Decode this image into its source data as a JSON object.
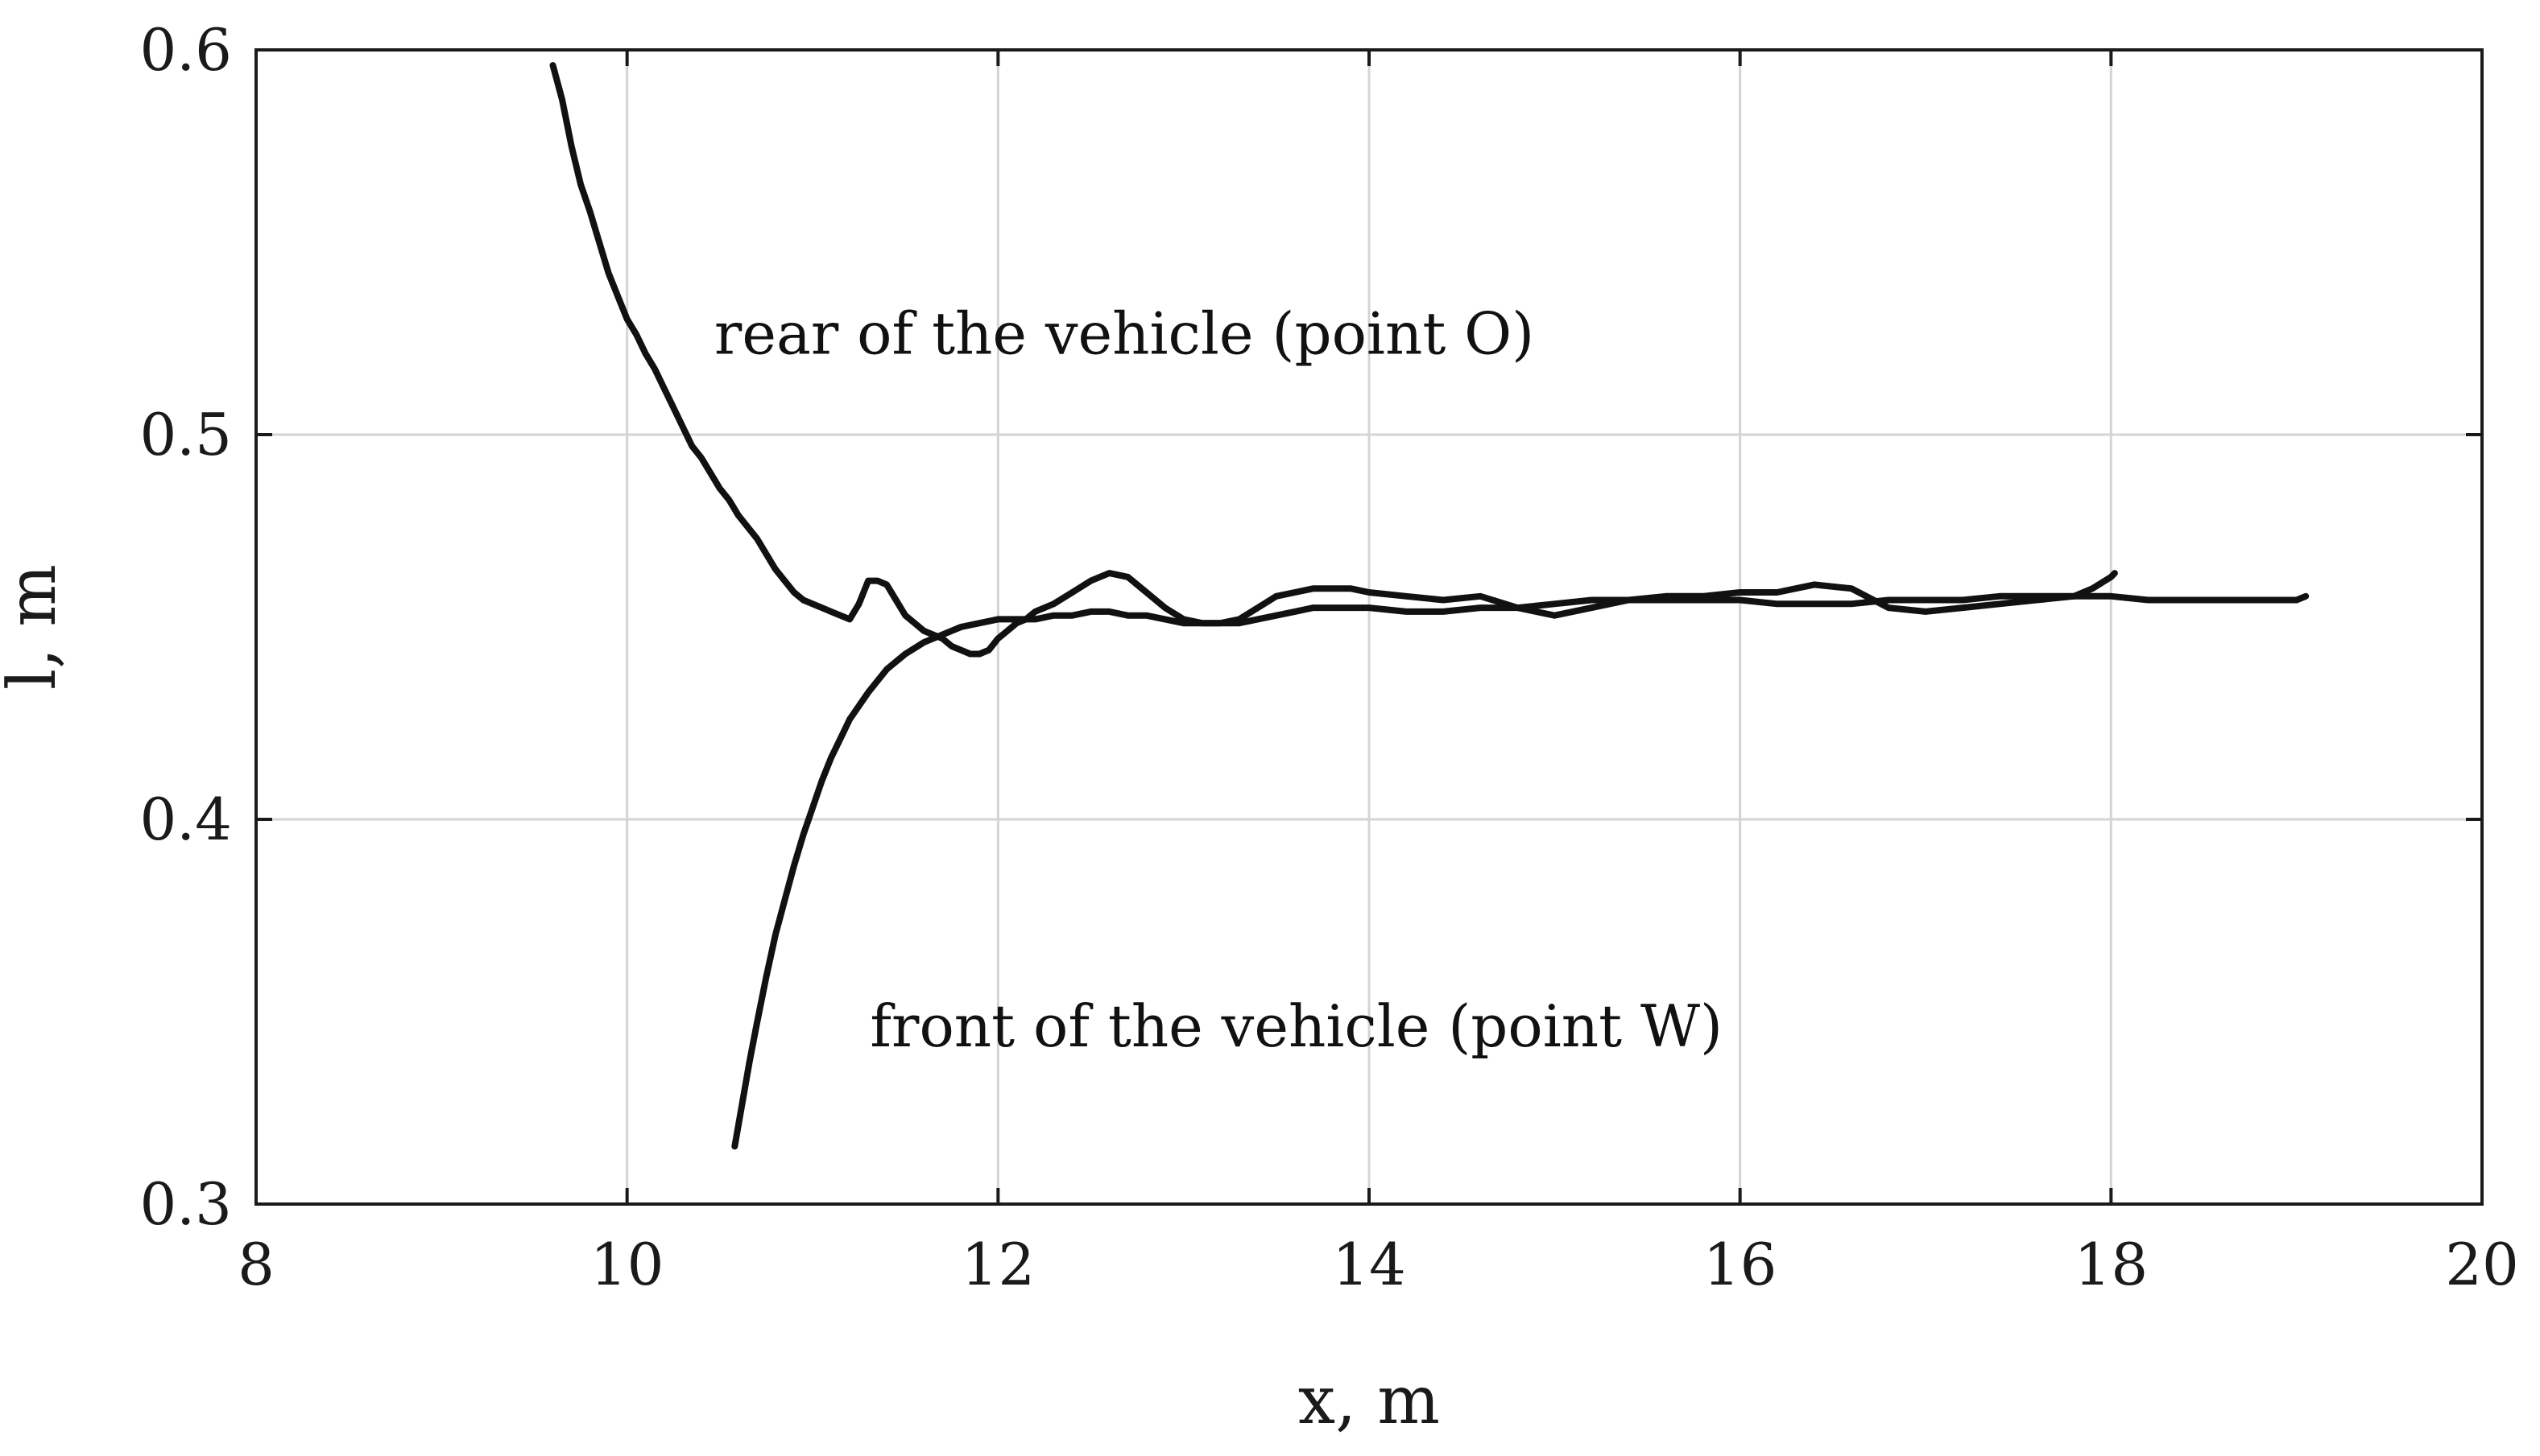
{
  "chart_data": {
    "type": "line",
    "title": "",
    "xlabel": "x, m",
    "ylabel": "l, m",
    "xlim": [
      8,
      20
    ],
    "ylim": [
      0.3,
      0.6
    ],
    "xticks": [
      8,
      10,
      12,
      14,
      16,
      18,
      20
    ],
    "yticks": [
      0.3,
      0.4,
      0.5,
      0.6
    ],
    "xtick_labels": [
      "8",
      "10",
      "12",
      "14",
      "16",
      "18",
      "20"
    ],
    "ytick_labels": [
      "0.3",
      "0.4",
      "0.5",
      "0.6"
    ],
    "grid": true,
    "line_color": "#111111",
    "annotations": [
      {
        "text": "rear of the vehicle (point O)",
        "x": 10.47,
        "y": 0.521
      },
      {
        "text": "front of the vehicle (point W)",
        "x": 11.31,
        "y": 0.341
      }
    ],
    "series": [
      {
        "points": [
          [
            9.6,
            0.596
          ],
          [
            9.65,
            0.587
          ],
          [
            9.7,
            0.575
          ],
          [
            9.75,
            0.565
          ],
          [
            9.8,
            0.558
          ],
          [
            9.85,
            0.55
          ],
          [
            9.9,
            0.542
          ],
          [
            9.95,
            0.536
          ],
          [
            10.0,
            0.53
          ],
          [
            10.05,
            0.526
          ],
          [
            10.1,
            0.521
          ],
          [
            10.15,
            0.517
          ],
          [
            10.2,
            0.512
          ],
          [
            10.25,
            0.507
          ],
          [
            10.3,
            0.502
          ],
          [
            10.35,
            0.497
          ],
          [
            10.4,
            0.494
          ],
          [
            10.45,
            0.49
          ],
          [
            10.5,
            0.486
          ],
          [
            10.55,
            0.483
          ],
          [
            10.6,
            0.479
          ],
          [
            10.65,
            0.476
          ],
          [
            10.7,
            0.473
          ],
          [
            10.75,
            0.469
          ],
          [
            10.8,
            0.465
          ],
          [
            10.85,
            0.462
          ],
          [
            10.9,
            0.459
          ],
          [
            10.95,
            0.457
          ],
          [
            11.0,
            0.456
          ],
          [
            11.05,
            0.455
          ],
          [
            11.1,
            0.454
          ],
          [
            11.15,
            0.453
          ],
          [
            11.2,
            0.452
          ],
          [
            11.25,
            0.456
          ],
          [
            11.3,
            0.462
          ],
          [
            11.35,
            0.462
          ],
          [
            11.4,
            0.461
          ],
          [
            11.45,
            0.457
          ],
          [
            11.5,
            0.453
          ],
          [
            11.55,
            0.451
          ],
          [
            11.6,
            0.449
          ],
          [
            11.65,
            0.448
          ],
          [
            11.7,
            0.447
          ],
          [
            11.75,
            0.445
          ],
          [
            11.8,
            0.444
          ],
          [
            11.85,
            0.443
          ],
          [
            11.9,
            0.443
          ],
          [
            11.95,
            0.444
          ],
          [
            12.0,
            0.447
          ],
          [
            12.05,
            0.449
          ],
          [
            12.1,
            0.451
          ],
          [
            12.15,
            0.452
          ],
          [
            12.2,
            0.454
          ],
          [
            12.3,
            0.456
          ],
          [
            12.4,
            0.459
          ],
          [
            12.5,
            0.462
          ],
          [
            12.6,
            0.464
          ],
          [
            12.7,
            0.463
          ],
          [
            12.8,
            0.459
          ],
          [
            12.9,
            0.455
          ],
          [
            13.0,
            0.452
          ],
          [
            13.1,
            0.451
          ],
          [
            13.2,
            0.451
          ],
          [
            13.3,
            0.452
          ],
          [
            13.4,
            0.455
          ],
          [
            13.5,
            0.458
          ],
          [
            13.6,
            0.459
          ],
          [
            13.7,
            0.46
          ],
          [
            13.8,
            0.46
          ],
          [
            13.9,
            0.46
          ],
          [
            14.0,
            0.459
          ],
          [
            14.2,
            0.458
          ],
          [
            14.4,
            0.457
          ],
          [
            14.6,
            0.458
          ],
          [
            14.8,
            0.455
          ],
          [
            15.0,
            0.453
          ],
          [
            15.2,
            0.455
          ],
          [
            15.4,
            0.457
          ],
          [
            15.6,
            0.458
          ],
          [
            15.8,
            0.458
          ],
          [
            16.0,
            0.459
          ],
          [
            16.2,
            0.459
          ],
          [
            16.4,
            0.461
          ],
          [
            16.6,
            0.46
          ],
          [
            16.8,
            0.455
          ],
          [
            17.0,
            0.454
          ],
          [
            17.2,
            0.455
          ],
          [
            17.4,
            0.456
          ],
          [
            17.6,
            0.457
          ],
          [
            17.8,
            0.458
          ],
          [
            17.9,
            0.46
          ],
          [
            18.0,
            0.463
          ],
          [
            18.02,
            0.464
          ]
        ]
      },
      {
        "points": [
          [
            10.58,
            0.315
          ],
          [
            10.62,
            0.326
          ],
          [
            10.66,
            0.337
          ],
          [
            10.7,
            0.347
          ],
          [
            10.75,
            0.359
          ],
          [
            10.8,
            0.37
          ],
          [
            10.85,
            0.379
          ],
          [
            10.9,
            0.388
          ],
          [
            10.95,
            0.396
          ],
          [
            11.0,
            0.403
          ],
          [
            11.05,
            0.41
          ],
          [
            11.1,
            0.416
          ],
          [
            11.15,
            0.421
          ],
          [
            11.2,
            0.426
          ],
          [
            11.3,
            0.433
          ],
          [
            11.4,
            0.439
          ],
          [
            11.5,
            0.443
          ],
          [
            11.6,
            0.446
          ],
          [
            11.7,
            0.448
          ],
          [
            11.8,
            0.45
          ],
          [
            11.9,
            0.451
          ],
          [
            12.0,
            0.452
          ],
          [
            12.1,
            0.452
          ],
          [
            12.2,
            0.452
          ],
          [
            12.3,
            0.453
          ],
          [
            12.4,
            0.453
          ],
          [
            12.5,
            0.454
          ],
          [
            12.6,
            0.454
          ],
          [
            12.7,
            0.453
          ],
          [
            12.8,
            0.453
          ],
          [
            12.9,
            0.452
          ],
          [
            13.0,
            0.451
          ],
          [
            13.1,
            0.451
          ],
          [
            13.2,
            0.451
          ],
          [
            13.3,
            0.451
          ],
          [
            13.4,
            0.452
          ],
          [
            13.5,
            0.453
          ],
          [
            13.6,
            0.454
          ],
          [
            13.7,
            0.455
          ],
          [
            13.8,
            0.455
          ],
          [
            14.0,
            0.455
          ],
          [
            14.2,
            0.454
          ],
          [
            14.4,
            0.454
          ],
          [
            14.6,
            0.455
          ],
          [
            14.8,
            0.455
          ],
          [
            15.0,
            0.456
          ],
          [
            15.2,
            0.457
          ],
          [
            15.4,
            0.457
          ],
          [
            15.6,
            0.457
          ],
          [
            15.8,
            0.457
          ],
          [
            16.0,
            0.457
          ],
          [
            16.2,
            0.456
          ],
          [
            16.4,
            0.456
          ],
          [
            16.6,
            0.456
          ],
          [
            16.8,
            0.457
          ],
          [
            17.0,
            0.457
          ],
          [
            17.2,
            0.457
          ],
          [
            17.4,
            0.458
          ],
          [
            17.6,
            0.458
          ],
          [
            17.8,
            0.458
          ],
          [
            18.0,
            0.458
          ],
          [
            18.2,
            0.457
          ],
          [
            18.4,
            0.457
          ],
          [
            18.6,
            0.457
          ],
          [
            18.8,
            0.457
          ],
          [
            19.0,
            0.457
          ],
          [
            19.05,
            0.458
          ]
        ]
      }
    ]
  }
}
